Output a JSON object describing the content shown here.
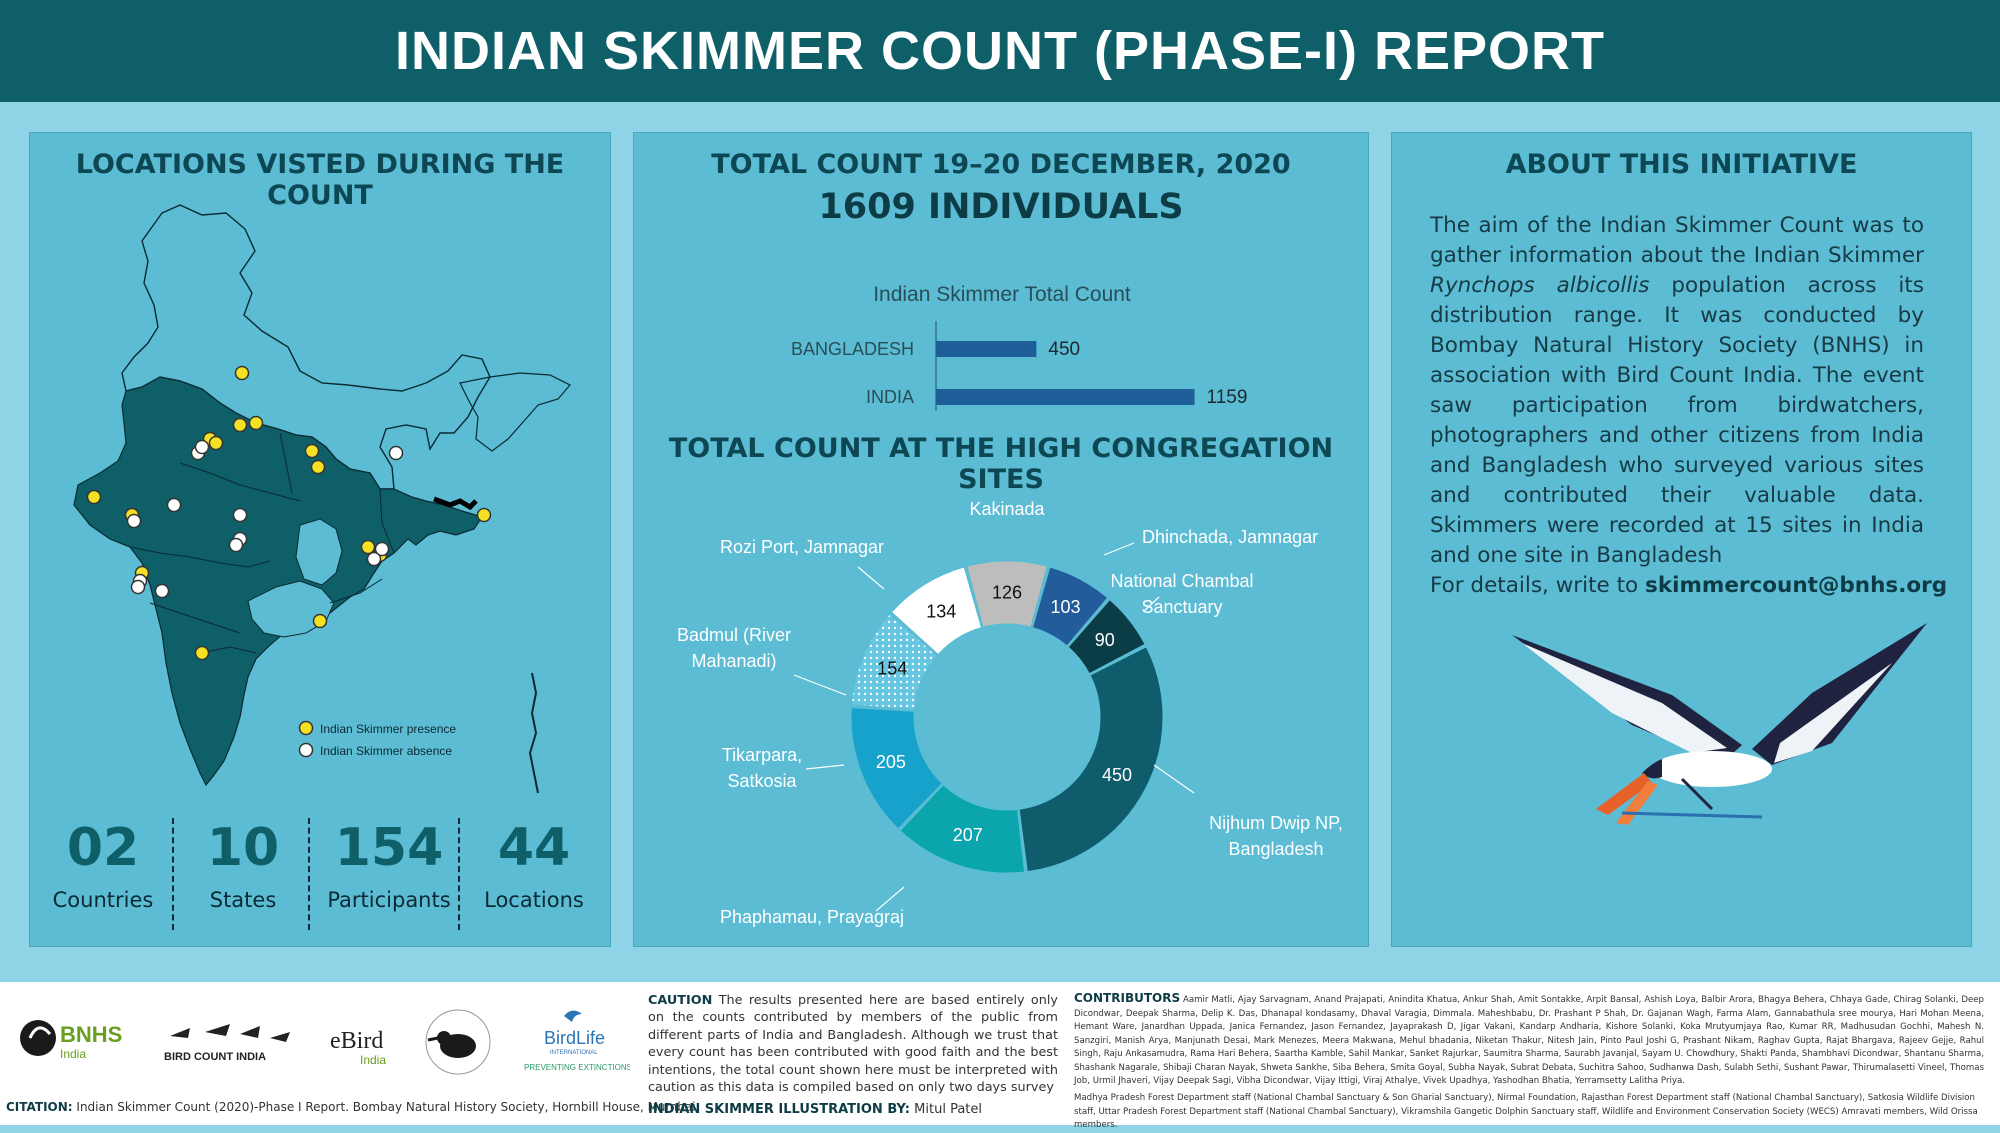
{
  "header": {
    "title": "INDIAN SKIMMER COUNT (PHASE-I) REPORT"
  },
  "locations_panel": {
    "title": "LOCATIONS VISTED DURING THE COUNT",
    "legend": {
      "presence": "Indian Skimmer presence",
      "absence": "Indian Skimmer absence"
    },
    "stats": [
      {
        "value": "02",
        "label": "Countries"
      },
      {
        "value": "10",
        "label": "States"
      },
      {
        "value": "154",
        "label": "Participants"
      },
      {
        "value": "44",
        "label": "Locations"
      }
    ]
  },
  "count_panel": {
    "title": "TOTAL COUNT 19–20 DECEMBER, 2020",
    "total": "1609 INDIVIDUALS",
    "sites_title": "TOTAL COUNT AT THE HIGH CONGREGATION SITES"
  },
  "chart_data": [
    {
      "type": "bar",
      "orientation": "horizontal",
      "title": "Indian Skimmer Total Count",
      "categories": [
        "BANGLADESH",
        "INDIA"
      ],
      "values": [
        450,
        1159
      ],
      "xlim": [
        0,
        1300
      ],
      "colors": {
        "bar": "#1e5f9a"
      }
    },
    {
      "type": "pie",
      "style": "donut",
      "slices": [
        {
          "label": "Kakinada",
          "value": 126,
          "color": "#bdbdbd"
        },
        {
          "label": "Dhinchada, Jamnagar",
          "value": 103,
          "color": "#225c9a"
        },
        {
          "label": "National Chambal Sanctuary",
          "value": 90,
          "color": "#0b3d47"
        },
        {
          "label": "Nijhum Dwip NP, Bangladesh",
          "value": 450,
          "color": "#0e5c6c"
        },
        {
          "label": "Phaphamau, Prayagraj",
          "value": 207,
          "color": "#0aa5ad"
        },
        {
          "label": "Tikarpara, Satkosia",
          "value": 205,
          "color": "#16a2cb"
        },
        {
          "label": "Badmul (River Mahanadi)",
          "value": 154,
          "color": "#67c6e2"
        },
        {
          "label": "Rozi Port, Jamnagar",
          "value": 134,
          "color": "#ffffff"
        }
      ]
    }
  ],
  "about_panel": {
    "title": "ABOUT THIS INITIATIVE",
    "text_1": "The aim of the Indian Skimmer Count was to gather information about the Indian Skimmer",
    "species": "Rynchops albicollis",
    "text_2": "population across its distribution range. It was conducted by Bombay Natural History Society (BNHS) in association with Bird Count India. The event saw participation from birdwatchers, photographers and other citizens from India and Bangladesh who surveyed various sites and contributed their valuable data. Skimmers were recorded at 15 sites in India and one site in Bangladesh",
    "details_prefix": "For details, write to",
    "email": "skimmercount@bnhs.org"
  },
  "footer": {
    "logos": {
      "bnhs": "BNHS",
      "bnhs_sub": "India",
      "bci": "BIRD COUNT INDIA",
      "ebird": "eBird",
      "ebird_sub": "India",
      "birdlife": "BirdLife",
      "birdlife_sub": "INTERNATIONAL",
      "birdlife_tag": "PREVENTING EXTINCTIONS"
    },
    "citation_label": "CITATION:",
    "citation": "Indian Skimmer Count (2020)-Phase I Report. Bombay Natural History Society, Hornbill House, Mumbai.",
    "caution_label": "CAUTION",
    "caution": "The results presented here are based entirely only on the counts contributed by members of the public from different parts of India and Bangladesh. Although we trust that every count has been contributed with good faith and the best intentions, the total count shown here must be interpreted with caution as this data is compiled based on only two days survey",
    "illustration_label": "INDIAN SKIMMER ILLUSTRATION BY:",
    "illustrator": "Mitul Patel",
    "contributors_label": "CONTRIBUTORS",
    "contributors": "Aamir Matli, Ajay Sarvagnam, Anand Prajapati, Anindita Khatua, Ankur Shah, Amit Sontakke, Arpit Bansal, Ashish Loya, Balbir Arora, Bhagya Behera, Chhaya Gade, Chirag Solanki, Deep Dicondwar, Deepak Sharma, Delip K. Das, Dhanapal kondasamy, Dhaval Varagia, Dimmala. Maheshbabu, Dr. Prashant P Shah, Dr. Gajanan Wagh, Farma Alam, Gannabathula sree mourya, Hari Mohan Meena, Hemant Ware, Janardhan Uppada, Janica Fernandez, Jason Fernandez, Jayaprakash D, Jigar Vakani, Kandarp Andharia, Kishore Solanki, Koka Mrutyumjaya Rao, Kumar RR, Madhusudan Gochhi, Mahesh N. Sanzgiri, Manish Arya, Manjunath Desai, Mark Menezes, Meera Makwana, Mehul bhadania, Niketan Thakur, Nitesh Jain, Pinto Paul Joshi G, Prashant Nikam, Raghav Gupta, Rajat Bhargava, Rajeev Gejje, Rahul Singh, Raju Ankasamudra, Rama Hari Behera, Saartha Kamble, Sahil Mankar, Sanket Rajurkar, Saumitra Sharma, Saurabh Javanjal, Sayam U. Chowdhury, Shakti Panda, Shambhavi Dicondwar, Shantanu Sharma, Shashank Nagarale, Shibaji Charan Nayak, Shweta Sankhe, Siba Behera, Smita Goyal, Subha Nayak, Subrat Debata, Suchitra Sahoo, Sudhanwa Dash, Sulabh Sethi, Sushant Pawar, Thirumalasetti Vineel, Thomas Job, Urmil Jhaveri, Vijay Deepak Sagi, Vibha Dicondwar, Vijay Ittigi, Viraj Athalye, Vivek Upadhya, Yashodhan Bhatia, Yerramsetty Lalitha Priya.",
    "contributors_orgs": "Madhya Pradesh Forest Department staff (National Chambal Sanctuary & Son Gharial Sanctuary), Nirmal Foundation, Rajasthan Forest Department staff (National Chambal Sanctuary), Satkosia Wildlife Division staff, Uttar Pradesh Forest Department staff (National Chambal Sanctuary), Vikramshila Gangetic Dolphin Sanctuary staff, Wildlife and Environment Conservation Society (WECS) Amravati members, Wild Orissa members."
  }
}
